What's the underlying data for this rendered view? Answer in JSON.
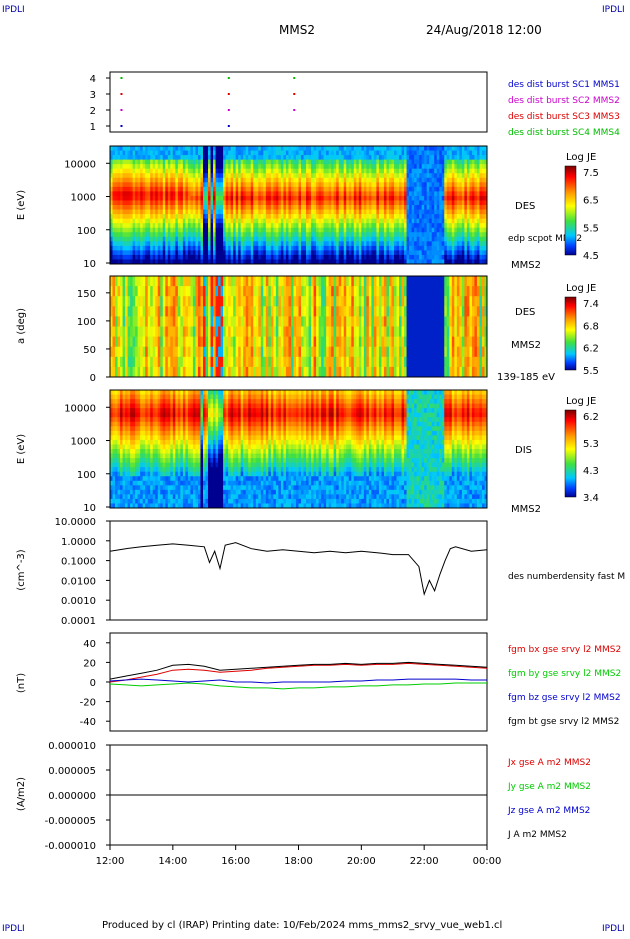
{
  "corner_labels": {
    "tl": "IPDLI",
    "tr": "IPDLI",
    "bl": "IPDLI",
    "br": "IPDLI"
  },
  "header": {
    "spacecraft": "MMS2",
    "datetime": "24/Aug/2018 12:00"
  },
  "footer": "Produced by cl (IRAP)   Printing date: 10/Feb/2024   mms_mms2_srvy_vue_web1.cl",
  "colors": {
    "mms1": "#0000cc",
    "mms2": "#cc00cc",
    "mms3": "#dd0000",
    "mms4": "#00bb00",
    "bx": "#dd0000",
    "by": "#00cc00",
    "bz": "#0000cc",
    "bt": "#000000"
  },
  "x_axis": {
    "ticks": [
      "12:00",
      "14:00",
      "16:00",
      "18:00",
      "20:00",
      "22:00",
      "00:00"
    ]
  },
  "chart_data": [
    {
      "type": "scatter",
      "ylim": [
        1,
        4
      ],
      "yticks": [
        "1",
        "2",
        "3",
        "4"
      ],
      "series": [
        {
          "name": "des dist burst SC1 MMS1",
          "y": 1,
          "x": [
            "12:20",
            "15:45"
          ]
        },
        {
          "name": "des dist burst SC2 MMS2",
          "y": 2,
          "x": [
            "12:20",
            "15:45",
            "17:50"
          ]
        },
        {
          "name": "des dist burst SC3 MMS3",
          "y": 3,
          "x": [
            "12:20",
            "15:45",
            "17:50"
          ]
        },
        {
          "name": "des dist burst SC4 MMS4",
          "y": 4,
          "x": [
            "12:20",
            "15:45",
            "17:50"
          ]
        }
      ]
    },
    {
      "type": "heatmap",
      "ylabel": "E (eV)",
      "yticks": [
        "10",
        "100",
        "1000",
        "10000"
      ],
      "label": "DES",
      "overlay": "edp scpot MMS2",
      "bottom_label": "MMS2",
      "colorbar": {
        "title": "Log JE",
        "ticks": [
          "7.5",
          "6.5",
          "5.5",
          "4.5"
        ]
      }
    },
    {
      "type": "heatmap",
      "ylabel": "a (deg)",
      "yticks": [
        "0",
        "50",
        "100",
        "150"
      ],
      "label": "DES",
      "sub_label": "MMS2",
      "bottom_label": "139-185 eV",
      "colorbar": {
        "title": "Log JE",
        "ticks": [
          "7.4",
          "6.8",
          "6.2",
          "5.5"
        ]
      }
    },
    {
      "type": "heatmap",
      "ylabel": "E (eV)",
      "yticks": [
        "10",
        "100",
        "1000",
        "10000"
      ],
      "label": "DIS",
      "bottom_label": "MMS2",
      "colorbar": {
        "title": "Log JE",
        "ticks": [
          "6.2",
          "5.3",
          "4.3",
          "3.4"
        ]
      }
    },
    {
      "type": "line",
      "ylabel": "(cm^-3)",
      "yscale": "log",
      "yticks": [
        "10.0000",
        "1.0000",
        "0.1000",
        "0.0100",
        "0.0010",
        "0.0001"
      ],
      "series": [
        {
          "name": "des numberdensity fast M",
          "x": [
            "12:00",
            "12:30",
            "13:00",
            "13:30",
            "14:00",
            "14:30",
            "15:00",
            "15:10",
            "15:20",
            "15:30",
            "15:40",
            "16:00",
            "16:30",
            "17:00",
            "17:30",
            "18:00",
            "18:30",
            "19:00",
            "19:30",
            "20:00",
            "20:30",
            "21:00",
            "21:30",
            "21:50",
            "22:00",
            "22:10",
            "22:20",
            "22:30",
            "22:40",
            "22:50",
            "23:00",
            "23:30",
            "00:00"
          ],
          "y": [
            0.3,
            0.4,
            0.5,
            0.6,
            0.7,
            0.6,
            0.5,
            0.08,
            0.3,
            0.04,
            0.6,
            0.8,
            0.4,
            0.3,
            0.35,
            0.3,
            0.25,
            0.3,
            0.25,
            0.3,
            0.25,
            0.2,
            0.2,
            0.05,
            0.002,
            0.01,
            0.003,
            0.02,
            0.1,
            0.4,
            0.5,
            0.3,
            0.35
          ]
        }
      ]
    },
    {
      "type": "line",
      "ylabel": "(nT)",
      "ylim": [
        -50,
        50
      ],
      "yticks": [
        "40",
        "20",
        "0",
        "-20",
        "-40"
      ],
      "x": [
        "12:00",
        "12:30",
        "13:00",
        "13:30",
        "14:00",
        "14:30",
        "15:00",
        "15:30",
        "16:00",
        "16:30",
        "17:00",
        "17:30",
        "18:00",
        "18:30",
        "19:00",
        "19:30",
        "20:00",
        "20:30",
        "21:00",
        "21:30",
        "22:00",
        "22:30",
        "23:00",
        "23:30",
        "00:00"
      ],
      "series": [
        {
          "name": "fgm bx gse srvy l2 MMS2",
          "y": [
            0,
            2,
            5,
            8,
            12,
            13,
            12,
            10,
            11,
            12,
            14,
            15,
            16,
            17,
            17,
            18,
            17,
            18,
            18,
            19,
            18,
            17,
            16,
            15,
            14
          ]
        },
        {
          "name": "fgm by gse srvy l2 MMS2",
          "y": [
            -2,
            -3,
            -4,
            -3,
            -2,
            -1,
            -2,
            -4,
            -5,
            -6,
            -6,
            -7,
            -6,
            -6,
            -5,
            -5,
            -4,
            -4,
            -3,
            -3,
            -2,
            -2,
            -1,
            -1,
            -1
          ]
        },
        {
          "name": "fgm bz gse srvy l2 MMS2",
          "y": [
            1,
            2,
            3,
            2,
            1,
            0,
            1,
            2,
            0,
            0,
            -1,
            0,
            0,
            0,
            0,
            1,
            1,
            2,
            2,
            3,
            3,
            3,
            3,
            2,
            2
          ]
        },
        {
          "name": "fgm bt gse srvy l2 MMS2",
          "y": [
            3,
            6,
            9,
            12,
            17,
            18,
            16,
            12,
            13,
            14,
            15,
            16,
            17,
            18,
            18,
            19,
            18,
            19,
            19,
            20,
            19,
            18,
            17,
            16,
            15
          ]
        }
      ]
    },
    {
      "type": "line",
      "ylabel": "(A/m2)",
      "ylim": [
        -1e-05,
        1e-05
      ],
      "yticks": [
        "0.000010",
        "0.000005",
        "0.000000",
        "-0.000005",
        "-0.000010"
      ],
      "series": [
        {
          "name": "Jx gse A m2 MMS2"
        },
        {
          "name": "Jy gse A m2 MMS2"
        },
        {
          "name": "Jz gse A m2 MMS2"
        },
        {
          "name": "J A m2 MMS2"
        }
      ]
    }
  ]
}
